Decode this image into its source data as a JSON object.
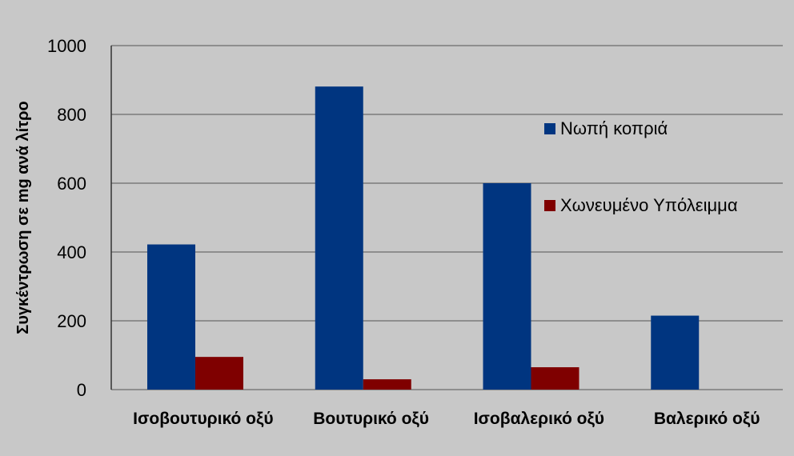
{
  "chart_data": {
    "type": "bar",
    "categories": [
      "Ισοβουτυρικό οξύ",
      "Βουτυρικό οξύ",
      "Ισοβαλερικό οξύ",
      "Βαλερικό οξύ"
    ],
    "series": [
      {
        "name": "Νωπή κοπριά",
        "values": [
          422,
          881,
          600,
          215
        ],
        "color": "#003580"
      },
      {
        "name": "Χωνευμένο Υπόλειμμα",
        "values": [
          95,
          30,
          65,
          0
        ],
        "color": "#7f0000"
      }
    ],
    "ylabel": "Συγκέντρωση σε mg ανά  λίτρο",
    "ylim": [
      0,
      1000
    ],
    "yticks": [
      0,
      200,
      400,
      600,
      800,
      1000
    ],
    "grid": true,
    "legend": "right"
  }
}
